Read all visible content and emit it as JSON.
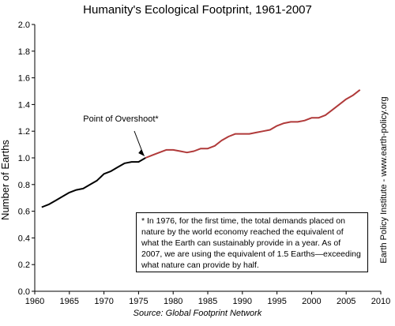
{
  "chart_data": {
    "type": "line",
    "title": "Humanity's Ecological Footprint, 1961-2007",
    "xlabel": "",
    "ylabel": "Number of Earths",
    "source": "Source: Global Footprint Network",
    "credit": "Earth Policy Institute - www.earth-policy.org",
    "xlim": [
      1960,
      2010
    ],
    "ylim": [
      0,
      2.0
    ],
    "x_ticks": [
      1960,
      1965,
      1970,
      1975,
      1980,
      1985,
      1990,
      1995,
      2000,
      2005,
      2010
    ],
    "y_ticks": [
      "0.0",
      "0.2",
      "0.4",
      "0.6",
      "0.8",
      "1.0",
      "1.2",
      "1.4",
      "1.6",
      "1.8",
      "2.0"
    ],
    "grid": false,
    "colors": {
      "before_overshoot": "#000000",
      "after_overshoot": "#b03a3a"
    },
    "annotation": "Point of Overshoot*",
    "note": "* In 1976, for the first time, the total demands placed on nature by the world economy reached the equivalent of what the Earth can sustainably provide in a year. As of 2007, we are using the equivalent of 1.5 Earths—exceeding what nature can provide by half.",
    "series": [
      {
        "x": [
          1961,
          1962,
          1963,
          1964,
          1965,
          1966,
          1967,
          1968,
          1969,
          1970,
          1971,
          1972,
          1973,
          1974,
          1975,
          1976
        ],
        "values": [
          0.63,
          0.65,
          0.68,
          0.71,
          0.74,
          0.76,
          0.77,
          0.8,
          0.83,
          0.88,
          0.9,
          0.93,
          0.96,
          0.97,
          0.97,
          1.0
        ]
      },
      {
        "x": [
          1976,
          1977,
          1978,
          1979,
          1980,
          1981,
          1982,
          1983,
          1984,
          1985,
          1986,
          1987,
          1988,
          1989,
          1990,
          1991,
          1992,
          1993,
          1994,
          1995,
          1996,
          1997,
          1998,
          1999,
          2000,
          2001,
          2002,
          2003,
          2004,
          2005,
          2006,
          2007
        ],
        "values": [
          1.0,
          1.02,
          1.04,
          1.06,
          1.06,
          1.05,
          1.04,
          1.05,
          1.07,
          1.07,
          1.09,
          1.13,
          1.16,
          1.18,
          1.18,
          1.18,
          1.19,
          1.2,
          1.21,
          1.24,
          1.26,
          1.27,
          1.27,
          1.28,
          1.3,
          1.3,
          1.32,
          1.36,
          1.4,
          1.44,
          1.47,
          1.51
        ]
      }
    ]
  }
}
